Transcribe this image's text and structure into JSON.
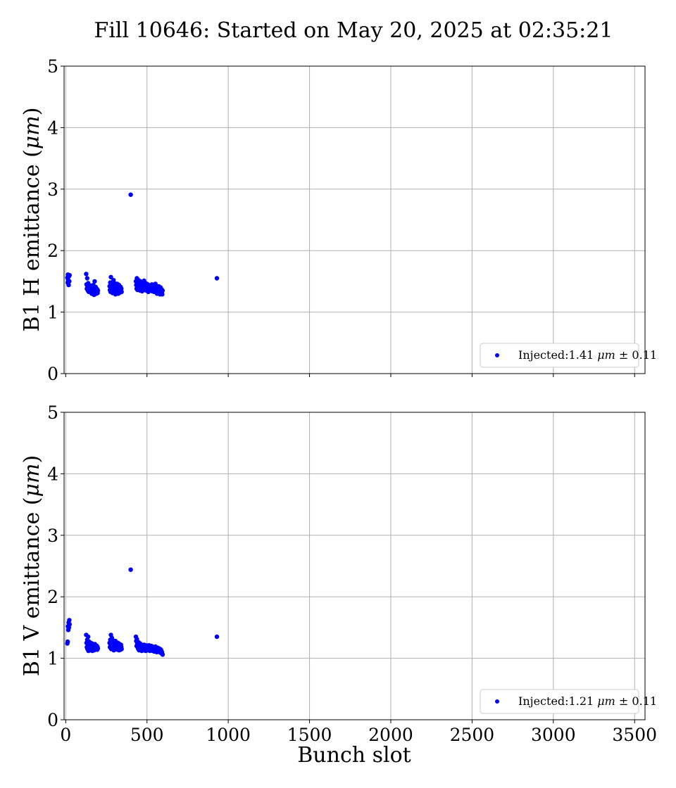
{
  "figure_title": "Fill 10646: Started on May 20, 2025 at 02:35:21",
  "colors": {
    "series": "#0000ff",
    "grid": "#b0b0b0",
    "frame": "#000000"
  },
  "chart_data": [
    {
      "type": "scatter",
      "ylabel": "B1 H emittance (μm)",
      "ylabel_prefix": "B1 H emittance (",
      "ylabel_unit": "μm",
      "ylabel_suffix": ")",
      "xlabel": "",
      "xlim": [
        -10,
        3564
      ],
      "ylim": [
        0,
        5
      ],
      "xticks": [
        0,
        500,
        1000,
        1500,
        2000,
        2500,
        3000,
        3500
      ],
      "yticks": [
        0,
        1,
        2,
        3,
        4,
        5
      ],
      "xtick_labels_visible": false,
      "grid": true,
      "legend": {
        "placement": "lower-right",
        "label_prefix": "Injected:1.41 ",
        "label_unit": "μm",
        "label_suffix": " ± 0.11"
      },
      "series": [
        {
          "x": [
            10,
            12,
            14,
            16,
            18,
            20,
            22,
            24,
            126,
            128,
            130,
            132,
            134,
            136,
            138,
            140,
            142,
            144,
            146,
            148,
            150,
            152,
            154,
            156,
            158,
            160,
            162,
            164,
            166,
            168,
            170,
            172,
            174,
            176,
            178,
            180,
            182,
            184,
            186,
            188,
            190,
            192,
            194,
            196,
            198,
            270,
            272,
            274,
            276,
            278,
            280,
            282,
            284,
            286,
            288,
            290,
            292,
            294,
            296,
            298,
            300,
            302,
            304,
            306,
            308,
            310,
            312,
            314,
            316,
            318,
            320,
            322,
            324,
            326,
            328,
            330,
            332,
            334,
            336,
            338,
            340,
            342,
            344,
            400,
            432,
            434,
            436,
            438,
            440,
            442,
            444,
            446,
            448,
            450,
            452,
            454,
            456,
            458,
            460,
            462,
            464,
            466,
            468,
            470,
            472,
            474,
            476,
            478,
            480,
            482,
            484,
            486,
            488,
            490,
            492,
            494,
            496,
            498,
            500,
            502,
            504,
            506,
            508,
            510,
            512,
            514,
            516,
            518,
            520,
            522,
            524,
            526,
            528,
            530,
            532,
            534,
            536,
            538,
            540,
            542,
            544,
            546,
            548,
            550,
            552,
            554,
            556,
            558,
            560,
            562,
            564,
            566,
            568,
            570,
            572,
            574,
            576,
            578,
            580,
            582,
            584,
            586,
            588,
            590,
            592,
            594,
            596,
            930
          ],
          "y": [
            1.56,
            1.48,
            1.61,
            1.52,
            1.44,
            1.58,
            1.5,
            1.6,
            1.62,
            1.45,
            1.38,
            1.55,
            1.42,
            1.35,
            1.47,
            1.4,
            1.33,
            1.44,
            1.37,
            1.42,
            1.36,
            1.39,
            1.34,
            1.41,
            1.38,
            1.3,
            1.43,
            1.36,
            1.4,
            1.32,
            1.44,
            1.37,
            1.28,
            1.35,
            1.5,
            1.39,
            1.33,
            1.41,
            1.36,
            1.3,
            1.38,
            1.34,
            1.37,
            1.31,
            1.35,
            1.42,
            1.36,
            1.48,
            1.33,
            1.57,
            1.4,
            1.35,
            1.45,
            1.38,
            1.31,
            1.44,
            1.37,
            1.52,
            1.35,
            1.41,
            1.47,
            1.34,
            1.39,
            1.29,
            1.43,
            1.36,
            1.4,
            1.33,
            1.46,
            1.38,
            1.35,
            1.42,
            1.3,
            1.37,
            1.44,
            1.34,
            1.39,
            1.36,
            1.32,
            1.41,
            1.35,
            1.38,
            1.33,
            2.91,
            1.5,
            1.44,
            1.38,
            1.55,
            1.42,
            1.36,
            1.48,
            1.4,
            1.52,
            1.45,
            1.39,
            1.47,
            1.41,
            1.35,
            1.5,
            1.43,
            1.38,
            1.46,
            1.4,
            1.34,
            1.49,
            1.42,
            1.37,
            1.45,
            1.39,
            1.51,
            1.44,
            1.36,
            1.41,
            1.47,
            1.38,
            1.43,
            1.35,
            1.4,
            1.46,
            1.37,
            1.42,
            1.39,
            1.33,
            1.44,
            1.38,
            1.41,
            1.36,
            1.43,
            1.39,
            1.35,
            1.42,
            1.37,
            1.4,
            1.45,
            1.34,
            1.38,
            1.41,
            1.36,
            1.43,
            1.39,
            1.33,
            1.37,
            1.4,
            1.35,
            1.46,
            1.38,
            1.32,
            1.41,
            1.36,
            1.3,
            1.39,
            1.34,
            1.37,
            1.31,
            1.42,
            1.35,
            1.38,
            1.33,
            1.29,
            1.36,
            1.4,
            1.34,
            1.31,
            1.37,
            1.33,
            1.29,
            1.35,
            1.55
          ]
        }
      ]
    },
    {
      "type": "scatter",
      "ylabel": "B1 V emittance (μm)",
      "ylabel_prefix": "B1 V emittance (",
      "ylabel_unit": "μm",
      "ylabel_suffix": ")",
      "xlabel": "Bunch slot",
      "xlim": [
        -10,
        3564
      ],
      "ylim": [
        0,
        5
      ],
      "xticks": [
        0,
        500,
        1000,
        1500,
        2000,
        2500,
        3000,
        3500
      ],
      "yticks": [
        0,
        1,
        2,
        3,
        4,
        5
      ],
      "xtick_labels_visible": true,
      "grid": true,
      "legend": {
        "placement": "lower-right",
        "label_prefix": "Injected:1.21 ",
        "label_unit": "μm",
        "label_suffix": " ± 0.11"
      },
      "series": [
        {
          "x": [
            10,
            12,
            14,
            16,
            18,
            20,
            22,
            24,
            126,
            128,
            130,
            132,
            134,
            136,
            138,
            140,
            142,
            144,
            146,
            148,
            150,
            152,
            154,
            156,
            158,
            160,
            162,
            164,
            166,
            168,
            170,
            172,
            174,
            176,
            178,
            180,
            182,
            184,
            186,
            188,
            190,
            192,
            194,
            196,
            198,
            270,
            272,
            274,
            276,
            278,
            280,
            282,
            284,
            286,
            288,
            290,
            292,
            294,
            296,
            298,
            300,
            302,
            304,
            306,
            308,
            310,
            312,
            314,
            316,
            318,
            320,
            322,
            324,
            326,
            328,
            330,
            332,
            334,
            336,
            338,
            340,
            342,
            344,
            400,
            432,
            434,
            436,
            438,
            440,
            442,
            444,
            446,
            448,
            450,
            452,
            454,
            456,
            458,
            460,
            462,
            464,
            466,
            468,
            470,
            472,
            474,
            476,
            478,
            480,
            482,
            484,
            486,
            488,
            490,
            492,
            494,
            496,
            498,
            500,
            502,
            504,
            506,
            508,
            510,
            512,
            514,
            516,
            518,
            520,
            522,
            524,
            526,
            528,
            530,
            532,
            534,
            536,
            538,
            540,
            542,
            544,
            546,
            548,
            550,
            552,
            554,
            556,
            558,
            560,
            562,
            564,
            566,
            568,
            570,
            572,
            574,
            576,
            578,
            580,
            582,
            584,
            586,
            588,
            590,
            592,
            594,
            596,
            930
          ],
          "y": [
            1.24,
            1.27,
            1.52,
            1.46,
            1.58,
            1.5,
            1.62,
            1.55,
            1.38,
            1.25,
            1.18,
            1.3,
            1.15,
            1.22,
            1.35,
            1.12,
            1.2,
            1.27,
            1.16,
            1.23,
            1.13,
            1.19,
            1.25,
            1.14,
            1.21,
            1.17,
            1.24,
            1.12,
            1.18,
            1.22,
            1.15,
            1.2,
            1.13,
            1.19,
            1.16,
            1.23,
            1.14,
            1.18,
            1.21,
            1.15,
            1.17,
            1.2,
            1.14,
            1.18,
            1.16,
            1.25,
            1.18,
            1.3,
            1.22,
            1.38,
            1.15,
            1.27,
            1.33,
            1.2,
            1.24,
            1.17,
            1.29,
            1.22,
            1.13,
            1.26,
            1.19,
            1.23,
            1.16,
            1.28,
            1.21,
            1.15,
            1.24,
            1.18,
            1.22,
            1.14,
            1.2,
            1.25,
            1.17,
            1.21,
            1.13,
            1.19,
            1.23,
            1.16,
            1.2,
            1.14,
            1.22,
            1.18,
            1.15,
            2.44,
            1.35,
            1.28,
            1.2,
            1.31,
            1.24,
            1.18,
            1.22,
            1.15,
            1.26,
            1.19,
            1.13,
            1.21,
            1.17,
            1.24,
            1.14,
            1.2,
            1.16,
            1.22,
            1.12,
            1.18,
            1.21,
            1.15,
            1.19,
            1.13,
            1.17,
            1.22,
            1.16,
            1.2,
            1.14,
            1.18,
            1.12,
            1.21,
            1.15,
            1.19,
            1.17,
            1.13,
            1.2,
            1.16,
            1.14,
            1.18,
            1.21,
            1.15,
            1.17,
            1.12,
            1.19,
            1.16,
            1.14,
            1.2,
            1.13,
            1.17,
            1.15,
            1.19,
            1.12,
            1.16,
            1.18,
            1.14,
            1.11,
            1.17,
            1.15,
            1.13,
            1.19,
            1.12,
            1.16,
            1.14,
            1.1,
            1.15,
            1.13,
            1.17,
            1.11,
            1.14,
            1.12,
            1.16,
            1.1,
            1.13,
            1.15,
            1.11,
            1.09,
            1.14,
            1.12,
            1.08,
            1.1,
            1.07,
            1.06,
            1.35
          ]
        }
      ]
    }
  ]
}
